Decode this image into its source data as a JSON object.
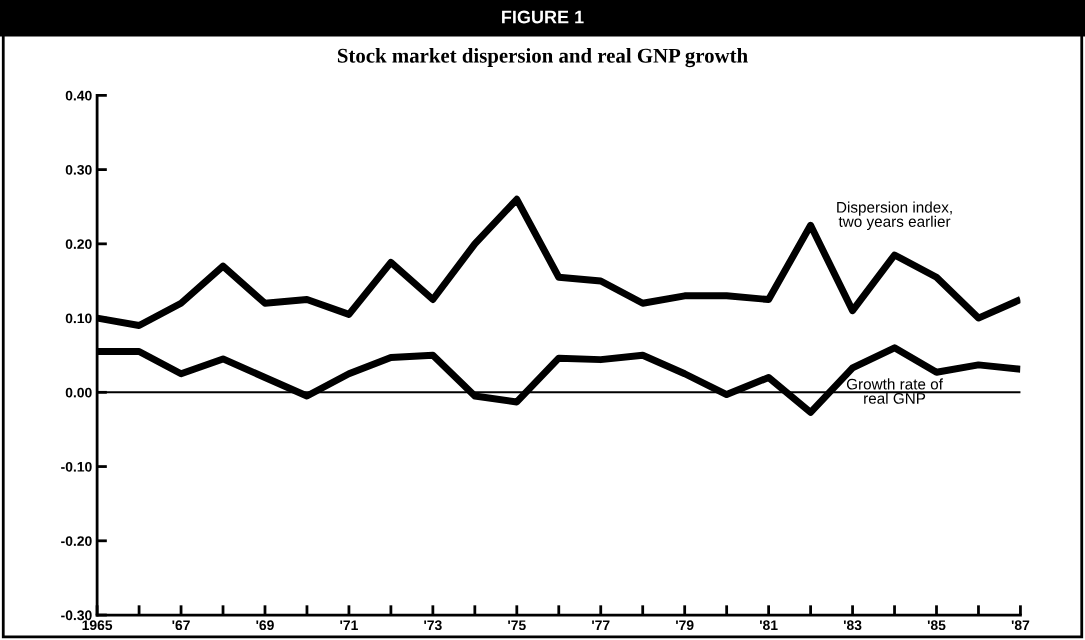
{
  "chart_data": {
    "type": "line",
    "title": "FIGURE 1",
    "subtitle": "Stock market dispersion and real GNP growth",
    "x": [
      1965,
      1966,
      1967,
      1968,
      1969,
      1970,
      1971,
      1972,
      1973,
      1974,
      1975,
      1976,
      1977,
      1978,
      1979,
      1980,
      1981,
      1982,
      1983,
      1984,
      1985,
      1986,
      1987
    ],
    "series": [
      {
        "name": "Dispersion index,\ntwo years earlier",
        "color": "#000000",
        "values": [
          0.1,
          0.09,
          0.12,
          0.17,
          0.12,
          0.125,
          0.105,
          0.175,
          0.125,
          0.2,
          0.26,
          0.155,
          0.15,
          0.12,
          0.13,
          0.13,
          0.125,
          0.225,
          0.11,
          0.185,
          0.155,
          0.1,
          0.125
        ]
      },
      {
        "name": "Growth rate of\nreal GNP",
        "color": "#000000",
        "values": [
          0.055,
          0.055,
          0.025,
          0.045,
          0.02,
          -0.005,
          0.025,
          0.047,
          0.05,
          -0.005,
          -0.013,
          0.046,
          0.044,
          0.05,
          0.025,
          -0.003,
          0.02,
          -0.027,
          0.033,
          0.06,
          0.027,
          0.037,
          0.031
        ]
      }
    ],
    "xlim": [
      1965,
      1987
    ],
    "xticks": [
      {
        "value": 1965,
        "label": "1965"
      },
      {
        "value": 1966,
        "label": null
      },
      {
        "value": 1967,
        "label": "'67"
      },
      {
        "value": 1968,
        "label": null
      },
      {
        "value": 1969,
        "label": "'69"
      },
      {
        "value": 1970,
        "label": null
      },
      {
        "value": 1971,
        "label": "'71"
      },
      {
        "value": 1972,
        "label": null
      },
      {
        "value": 1973,
        "label": "'73"
      },
      {
        "value": 1974,
        "label": null
      },
      {
        "value": 1975,
        "label": "'75"
      },
      {
        "value": 1976,
        "label": null
      },
      {
        "value": 1977,
        "label": "'77"
      },
      {
        "value": 1978,
        "label": null
      },
      {
        "value": 1979,
        "label": "'79"
      },
      {
        "value": 1980,
        "label": null
      },
      {
        "value": 1981,
        "label": "'81"
      },
      {
        "value": 1982,
        "label": null
      },
      {
        "value": 1983,
        "label": "'83"
      },
      {
        "value": 1984,
        "label": null
      },
      {
        "value": 1985,
        "label": "'85"
      },
      {
        "value": 1986,
        "label": null
      },
      {
        "value": 1987,
        "label": "'87"
      }
    ],
    "ylim": [
      -0.3,
      0.4
    ],
    "yticks": [
      {
        "value": -0.3,
        "label": "-0.30"
      },
      {
        "value": -0.2,
        "label": "-0.20"
      },
      {
        "value": -0.1,
        "label": "-0.10"
      },
      {
        "value": 0,
        "label": "0.00"
      },
      {
        "value": 0.1,
        "label": "0.10"
      },
      {
        "value": 0.2,
        "label": "0.20"
      },
      {
        "value": 0.3,
        "label": "0.30"
      },
      {
        "value": 0.4,
        "label": "0.40"
      }
    ],
    "ref_lines": [
      {
        "axis": "y",
        "value": 0,
        "color": "#000000",
        "line_style": "solid"
      }
    ],
    "grid": false,
    "legend": false,
    "marker": "none",
    "line_style": "solid"
  }
}
